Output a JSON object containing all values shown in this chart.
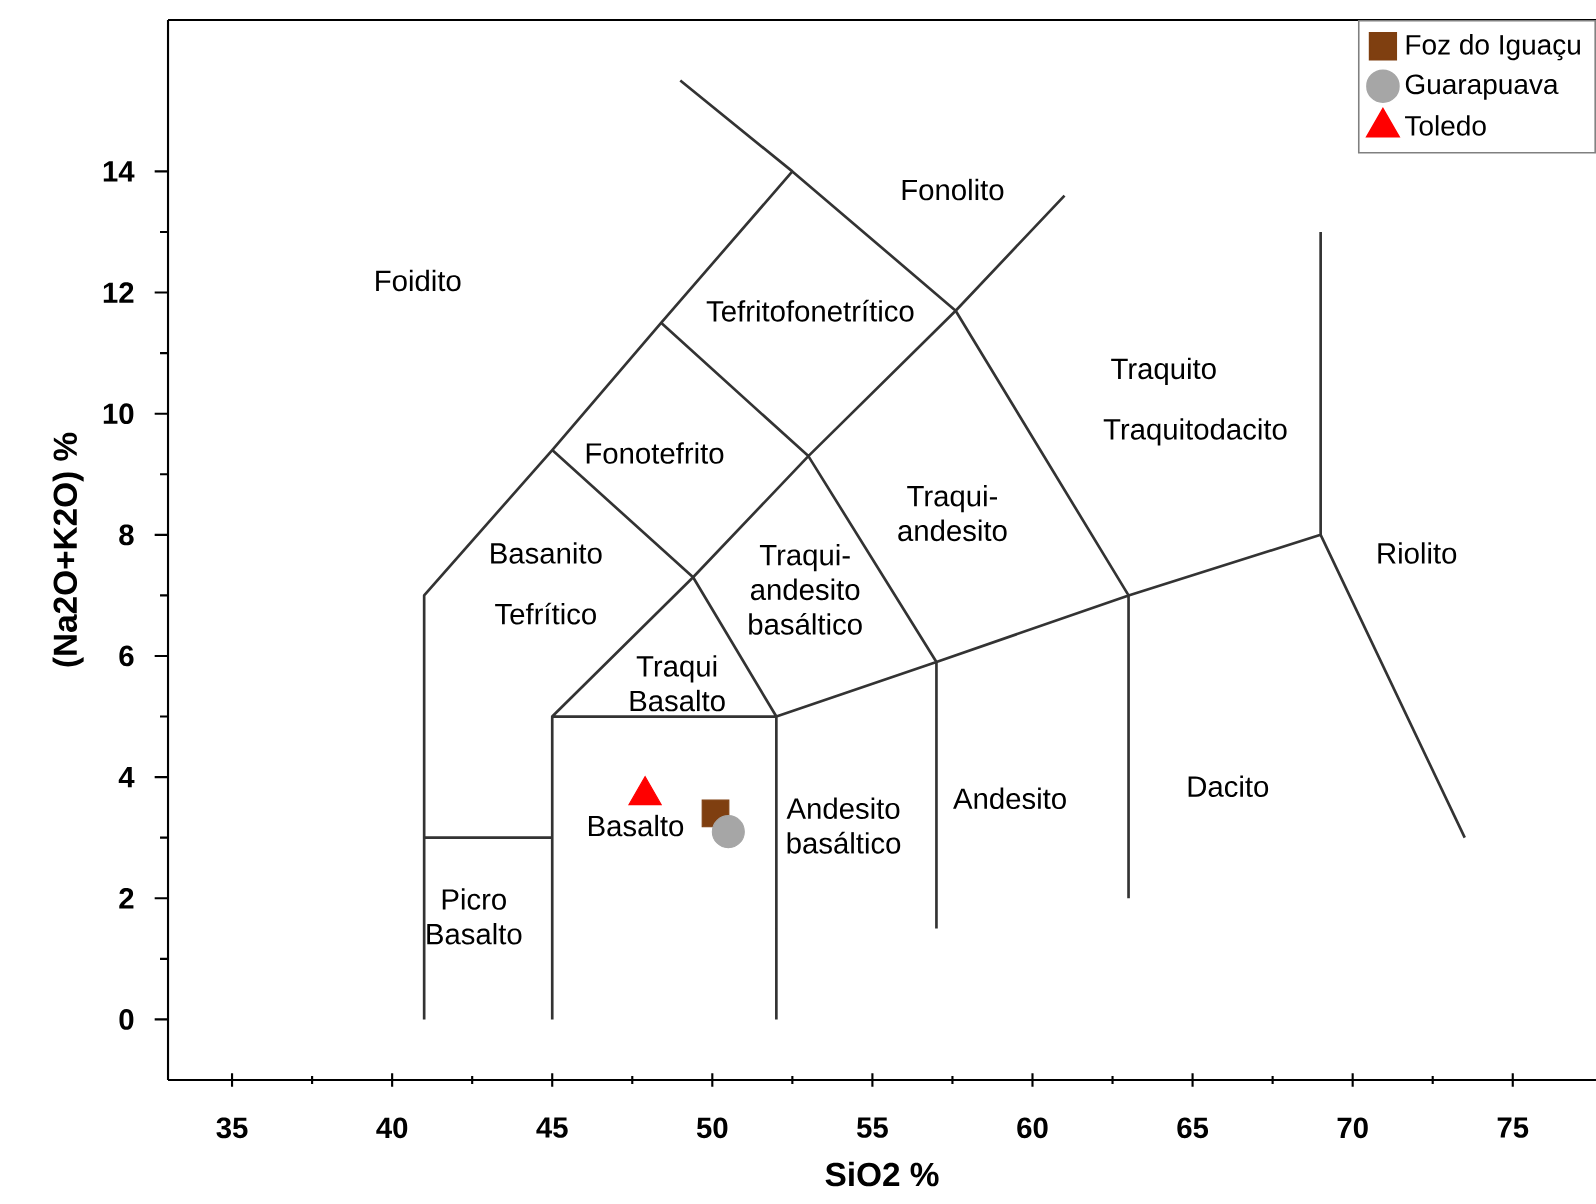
{
  "chart_data": {
    "type": "scatter",
    "xlabel": "SiO2 %",
    "ylabel": "(Na2O+K2O) %",
    "xlim": [
      33,
      77.6
    ],
    "ylim": [
      -1,
      16.5
    ],
    "xticks": [
      35,
      40,
      45,
      50,
      55,
      60,
      65,
      70,
      75
    ],
    "yticks": [
      0,
      2,
      4,
      6,
      8,
      10,
      12,
      14
    ],
    "legend": "top right",
    "series": [
      {
        "type": "line",
        "color": "#333333",
        "x": [
          41,
          41,
          45,
          48.4,
          52.5,
          49,
          null,
          45,
          45,
          49.4,
          53,
          57.6,
          61,
          null,
          41,
          45,
          null,
          45,
          52,
          57,
          63,
          69,
          73.5,
          null,
          52,
          52,
          null,
          57,
          57,
          null,
          63,
          63,
          null,
          69,
          69,
          null,
          49.4,
          52,
          null,
          53,
          57,
          null,
          57.6,
          63,
          null,
          45,
          49.4,
          null,
          48.4,
          53,
          null,
          52.5,
          57.6
        ],
        "values": [
          0,
          7,
          9.4,
          11.5,
          14,
          15.5,
          null,
          0,
          5,
          7.3,
          9.3,
          11.7,
          13.6,
          null,
          3,
          3,
          null,
          5,
          5,
          5.9,
          7,
          8,
          3,
          null,
          5,
          0,
          null,
          5.9,
          1.5,
          null,
          7,
          2,
          null,
          8,
          13,
          null,
          7.3,
          5,
          null,
          9.3,
          5.9,
          null,
          11.7,
          7,
          null,
          9.4,
          7.3,
          null,
          11.5,
          9.3,
          null,
          14,
          11.7
        ]
      },
      {
        "name": "Foz do Iguaçu",
        "color": "#7f3f10",
        "marker": "square",
        "x": [
          50.1
        ],
        "values": [
          3.4
        ]
      },
      {
        "name": "Guarapuava",
        "color": "#a6a6a6",
        "marker": "circle",
        "x": [
          50.5
        ],
        "values": [
          3.1
        ]
      },
      {
        "name": "Toledo",
        "color": "#ff0000",
        "marker": "triangle",
        "x": [
          47.9
        ],
        "values": [
          3.7
        ]
      }
    ],
    "annotations": [
      "Foidito",
      "Fonolito",
      "Tefritofonetrítico",
      "Fonotefrito",
      "Traquito",
      "Traquitodacito",
      "Traqui-andesito",
      "Basanito",
      "Tefrítico",
      "Traqui-andesito basáltico",
      "Traqui Basalto",
      "Riolito",
      "Basalto",
      "Andesito basáltico",
      "Andesito",
      "Dacito",
      "Picro Basalto"
    ]
  }
}
